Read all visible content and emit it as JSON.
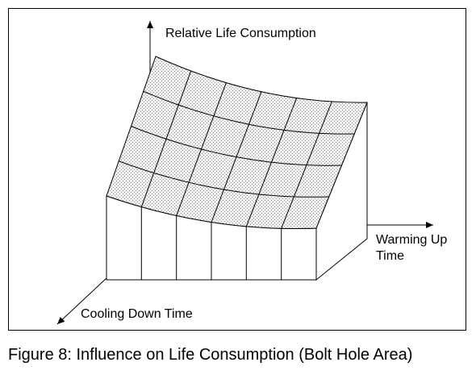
{
  "figure": {
    "axis_vertical_label": "Relative Life Consumption",
    "axis_right_label_line1": "Warming Up",
    "axis_right_label_line2": "Time",
    "axis_front_label": "Cooling Down Time",
    "caption": "Figure 8: Influence on Life Consumption (Bolt Hole Area)"
  },
  "colors": {
    "line": "#000000",
    "surface_fill": "#f2f2f2",
    "surface_dot": "#8a8a8a",
    "side_fill": "#ffffff",
    "background": "#ffffff"
  }
}
